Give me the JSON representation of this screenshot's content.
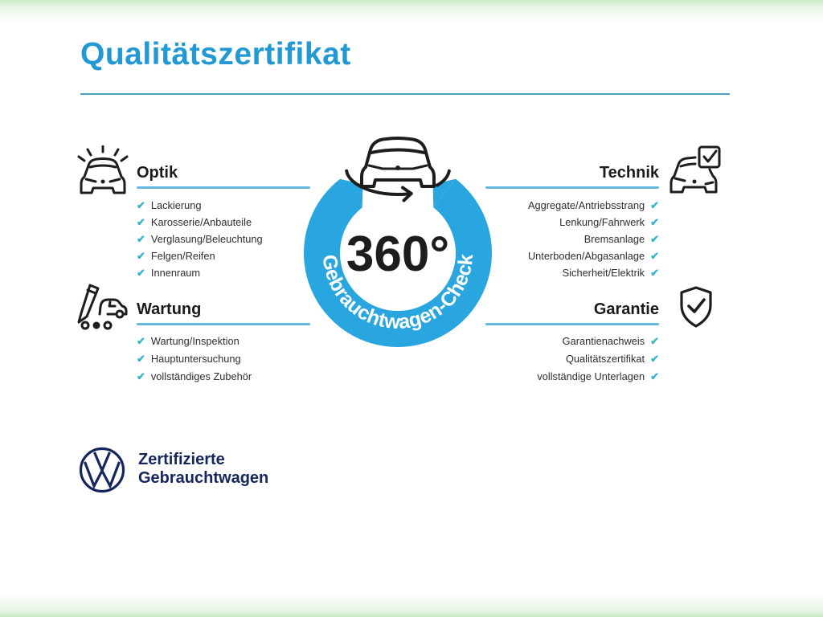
{
  "page": {
    "title": "Qualitätszertifikat"
  },
  "center": {
    "degrees": "360°",
    "ring_label": "Gebrauchtwagen-Check"
  },
  "glyphs": {
    "check": "✔"
  },
  "sections": {
    "optik": {
      "title": "Optik",
      "items": [
        "Lackierung",
        "Karosserie/Anbauteile",
        "Verglasung/Beleuchtung",
        "Felgen/Reifen",
        "Innenraum"
      ]
    },
    "wartung": {
      "title": "Wartung",
      "items": [
        "Wartung/Inspektion",
        "Hauptuntersuchung",
        "vollständiges Zubehör"
      ]
    },
    "technik": {
      "title": "Technik",
      "items": [
        "Aggregate/Antriebsstrang",
        "Lenkung/Fahrwerk",
        "Bremsanlage",
        "Unterboden/Abgasanlage",
        "Sicherheit/Elektrik"
      ]
    },
    "garantie": {
      "title": "Garantie",
      "items": [
        "Garantienachweis",
        "Qualitätszertifikat",
        "vollständige Unterlagen"
      ]
    }
  },
  "footer": {
    "brand_line1": "Zertifizierte",
    "brand_line2": "Gebrauchtwagen"
  },
  "colors": {
    "title_blue": "#2299d4",
    "divider_blue": "#4aa3c6",
    "underline_blue": "#63b9dc",
    "ring_blue": "#29a5e0",
    "check_teal": "#35b5c8",
    "brand_navy": "#14265c",
    "ink": "#1d1d1b",
    "edge_band_green": "#cde9c8"
  }
}
